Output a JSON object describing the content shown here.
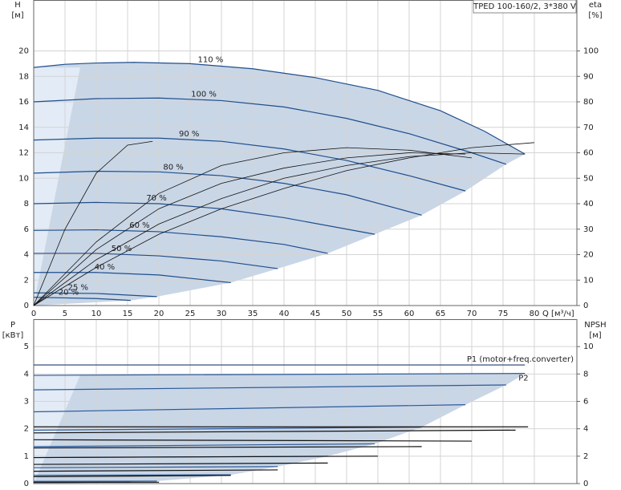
{
  "header": {
    "title": "TPED 100-160/2, 3*380 V"
  },
  "chart_data": [
    {
      "type": "line",
      "y_label": "H",
      "y_unit": "[м]",
      "y2_label": "eta",
      "y2_unit": "[%]",
      "x_label": "Q [м³/ч]",
      "xlim": [
        0,
        86.8
      ],
      "xticks": [
        0,
        5,
        10,
        15,
        20,
        25,
        30,
        35,
        40,
        45,
        50,
        55,
        60,
        65,
        70,
        75,
        80
      ],
      "ylim": [
        0,
        24
      ],
      "yticks": [
        0,
        2,
        4,
        6,
        8,
        10,
        12,
        14,
        16,
        18,
        20
      ],
      "y2lim": [
        0,
        120
      ],
      "y2ticks": [
        0,
        10,
        20,
        30,
        40,
        50,
        60,
        70,
        80,
        90,
        100
      ],
      "grid": true,
      "series": [
        {
          "name": "110 %",
          "color": "#1f4e8c",
          "x": [
            0,
            5,
            10,
            16,
            25,
            35,
            45,
            55,
            65,
            72,
            78.5
          ],
          "values": [
            18.7,
            18.95,
            19.05,
            19.1,
            19.0,
            18.6,
            17.9,
            16.9,
            15.3,
            13.7,
            11.9
          ]
        },
        {
          "name": "100 %",
          "color": "#1f4e8c",
          "x": [
            0,
            10,
            20,
            30,
            40,
            50,
            60,
            70,
            75.5
          ],
          "values": [
            16.0,
            16.25,
            16.3,
            16.1,
            15.6,
            14.7,
            13.5,
            12.0,
            11.1
          ]
        },
        {
          "name": "90 %",
          "color": "#1f4e8c",
          "x": [
            0,
            10,
            20,
            30,
            40,
            50,
            60,
            69
          ],
          "values": [
            13.0,
            13.15,
            13.15,
            12.9,
            12.3,
            11.4,
            10.2,
            9.0
          ]
        },
        {
          "name": "80 %",
          "color": "#1f4e8c",
          "x": [
            0,
            10,
            20,
            30,
            40,
            50,
            62
          ],
          "values": [
            10.4,
            10.55,
            10.5,
            10.2,
            9.6,
            8.7,
            7.1
          ]
        },
        {
          "name": "70 %",
          "color": "#1f4e8c",
          "x": [
            0,
            10,
            20,
            30,
            40,
            54.5
          ],
          "values": [
            8.0,
            8.1,
            8.0,
            7.6,
            6.9,
            5.6
          ]
        },
        {
          "name": "60 %",
          "color": "#1f4e8c",
          "x": [
            0,
            10,
            20,
            30,
            40,
            47
          ],
          "values": [
            5.9,
            5.95,
            5.8,
            5.4,
            4.8,
            4.1
          ]
        },
        {
          "name": "50 %",
          "color": "#1f4e8c",
          "x": [
            0,
            10,
            20,
            30,
            39
          ],
          "values": [
            4.1,
            4.1,
            3.9,
            3.5,
            2.9
          ]
        },
        {
          "name": "40 %",
          "color": "#1f4e8c",
          "x": [
            0,
            10,
            20,
            31.5
          ],
          "values": [
            2.6,
            2.6,
            2.4,
            1.8
          ]
        },
        {
          "name": "25 %",
          "color": "#1f4e8c",
          "x": [
            0,
            10,
            19.7
          ],
          "values": [
            1.0,
            0.95,
            0.7
          ]
        },
        {
          "name": "20 %",
          "color": "#1f4e8c",
          "x": [
            0,
            10,
            15.5
          ],
          "values": [
            0.65,
            0.55,
            0.4
          ]
        },
        {
          "color": "#111111",
          "axis": "y2",
          "x": [
            0,
            10,
            20,
            30,
            40,
            50,
            60,
            70,
            78.5
          ],
          "values": [
            0,
            18,
            32,
            42,
            50,
            55,
            58.5,
            60,
            59.5
          ]
        },
        {
          "color": "#111111",
          "axis": "y2",
          "x": [
            0,
            10,
            20,
            30,
            40,
            50,
            60,
            69
          ],
          "values": [
            0,
            22,
            38,
            48,
            54,
            58,
            60,
            59.5
          ]
        },
        {
          "color": "#111111",
          "axis": "y2",
          "x": [
            0,
            10,
            20,
            30,
            40,
            50,
            60,
            70,
            80
          ],
          "values": [
            0,
            15,
            28,
            38,
            46,
            53,
            58,
            62,
            64
          ]
        },
        {
          "color": "#111111",
          "axis": "y2",
          "x": [
            0,
            5,
            10,
            15,
            19
          ],
          "values": [
            0,
            30,
            52,
            63,
            64.5
          ]
        },
        {
          "color": "#111111",
          "axis": "y2",
          "x": [
            0,
            10,
            20,
            30,
            40,
            50,
            60,
            70
          ],
          "values": [
            0,
            25,
            44,
            55,
            60,
            62,
            61,
            58
          ]
        }
      ]
    },
    {
      "type": "line",
      "y_label": "P",
      "y_unit": "[кВт]",
      "y2_label": "NPSH",
      "y2_unit": "[м]",
      "xlim": [
        0,
        86.8
      ],
      "ylim": [
        0,
        6
      ],
      "yticks": [
        0,
        1,
        2,
        3,
        4,
        5
      ],
      "y2lim": [
        0,
        12
      ],
      "y2ticks": [
        0,
        2,
        4,
        6,
        8,
        10
      ],
      "grid": true,
      "series": [
        {
          "name": "P2",
          "color": "#2a5a9a",
          "x": [
            0,
            78.5
          ],
          "values": [
            3.95,
            4.02
          ]
        },
        {
          "name": "P1 (motor+freq.converter)",
          "color": "#1f3f6e",
          "x": [
            0,
            78.5
          ],
          "values": [
            4.33,
            4.33
          ]
        },
        {
          "color": "#2a5a9a",
          "x": [
            0,
            75.5
          ],
          "values": [
            3.42,
            3.6
          ]
        },
        {
          "color": "#2a5a9a",
          "x": [
            0,
            69
          ],
          "values": [
            2.62,
            2.88
          ]
        },
        {
          "color": "#2a5a9a",
          "x": [
            0,
            62
          ],
          "values": [
            1.95,
            2.06
          ]
        },
        {
          "color": "#2a5a9a",
          "x": [
            0,
            54.5
          ],
          "values": [
            1.35,
            1.45
          ]
        },
        {
          "color": "#2a5a9a",
          "x": [
            0,
            47
          ],
          "values": [
            0.95,
            1.0
          ]
        },
        {
          "color": "#2a5a9a",
          "x": [
            0,
            39
          ],
          "values": [
            0.58,
            0.62
          ]
        },
        {
          "color": "#2a5a9a",
          "x": [
            0,
            31.5
          ],
          "values": [
            0.3,
            0.32
          ]
        },
        {
          "color": "#2a5a9a",
          "x": [
            0,
            19.7
          ],
          "values": [
            0.08,
            0.09
          ]
        },
        {
          "color": "#2a5a9a",
          "x": [
            0,
            15.5
          ],
          "values": [
            0.04,
            0.05
          ]
        },
        {
          "color": "#111111",
          "x": [
            0,
            79
          ],
          "values": [
            2.07,
            2.07
          ]
        },
        {
          "color": "#111111",
          "x": [
            0,
            77
          ],
          "values": [
            1.85,
            1.95
          ]
        },
        {
          "color": "#111111",
          "x": [
            0,
            70
          ],
          "values": [
            1.6,
            1.55
          ]
        },
        {
          "color": "#111111",
          "x": [
            0,
            62
          ],
          "values": [
            1.3,
            1.35
          ]
        },
        {
          "color": "#111111",
          "x": [
            0,
            55
          ],
          "values": [
            0.95,
            1.0
          ]
        },
        {
          "color": "#111111",
          "x": [
            0,
            47
          ],
          "values": [
            0.7,
            0.75
          ]
        },
        {
          "color": "#111111",
          "x": [
            0,
            39
          ],
          "values": [
            0.45,
            0.5
          ]
        },
        {
          "color": "#111111",
          "x": [
            0,
            31.5
          ],
          "values": [
            0.25,
            0.3
          ]
        },
        {
          "color": "#111111",
          "x": [
            0,
            20
          ],
          "values": [
            0.05,
            0.05
          ]
        }
      ]
    }
  ]
}
